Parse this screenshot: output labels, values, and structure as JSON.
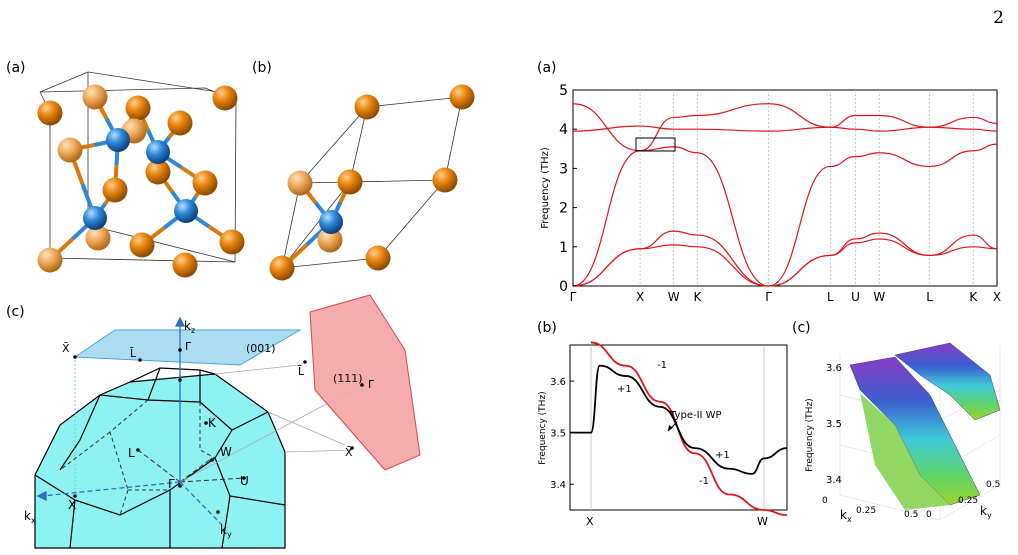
{
  "page_number": "2",
  "panels": {
    "left_a": "(a)",
    "left_b": "(b)",
    "left_c": "(c)",
    "right_a": "(a)",
    "right_b": "(b)",
    "right_c": "(c)"
  },
  "brillouin_zone": {
    "axis_kz": "k",
    "axis_kz_sub": "z",
    "axis_kx": "k",
    "axis_kx_sub": "x",
    "axis_ky": "k",
    "axis_ky_sub": "y",
    "plane_001": "(001)",
    "plane_111": "(111)",
    "points": {
      "Gamma": "Γ",
      "X": "X",
      "L": "L",
      "W": "W",
      "K": "K",
      "U": "U",
      "Gamma_bar_001": "Γ̄",
      "L_bar_001": "L̄",
      "X_bar_001": "X̄",
      "L_bar_111": "L̄",
      "Gamma_bar_111": "Γ̄",
      "X_bar_111": "X̄"
    }
  },
  "colors": {
    "atom_orange": "#d9780c",
    "atom_blue": "#2e86d4",
    "bz_face": "#8ef2f2",
    "plane_001": "#9dd6f0",
    "plane_111": "#f4a3a3",
    "band_red": "#e0141c"
  },
  "chart_data": [
    {
      "type": "line",
      "title": "",
      "ylabel": "Frequency (THz)",
      "xlabel": "",
      "ylim": [
        0,
        5
      ],
      "yticks": [
        "0",
        "1",
        "2",
        "3",
        "4",
        "5"
      ],
      "high_symmetry_points": [
        "Γ",
        "X",
        "W",
        "K",
        "Γ",
        "L",
        "U",
        "W",
        "L",
        "K",
        "X"
      ],
      "k_positions": [
        0,
        1,
        1.5,
        1.854,
        2.916,
        3.836,
        4.211,
        4.565,
        5.316,
        5.966,
        6.32
      ],
      "series": [
        {
          "values": [
            0,
            3.45,
            3.55,
            3.4,
            0,
            3.05,
            3.3,
            3.4,
            3.05,
            3.45,
            3.62
          ]
        },
        {
          "values": [
            4.65,
            3.45,
            4.3,
            4.35,
            4.65,
            4.05,
            4.35,
            4.35,
            4.05,
            4.3,
            4.15
          ]
        },
        {
          "values": [
            0,
            0.95,
            1.4,
            1.3,
            0,
            0.78,
            1.2,
            1.35,
            0.78,
            1.3,
            0.95
          ]
        },
        {
          "values": [
            0,
            0.95,
            1.05,
            1.0,
            0,
            0.78,
            1.1,
            1.2,
            0.78,
            1.0,
            0.95
          ]
        },
        {
          "values": [
            3.95,
            4.08,
            4.0,
            4.0,
            3.95,
            4.05,
            4.0,
            3.95,
            4.05,
            4.0,
            3.95
          ]
        }
      ]
    },
    {
      "type": "line",
      "ylabel": "Frequency (THz)",
      "ylim": [
        3.35,
        3.67
      ],
      "yticks": [
        "3.4",
        "3.5",
        "3.6"
      ],
      "xticks": [
        "X",
        "W"
      ],
      "annotation": "Type-II WP",
      "branch_labels": [
        "-1",
        "+1",
        "+1",
        "-1"
      ],
      "series": [
        {
          "name": "red",
          "x": [
            0,
            0.2,
            0.4,
            0.6,
            0.8,
            1.0
          ],
          "values": [
            3.675,
            3.63,
            3.56,
            3.46,
            3.38,
            3.35
          ]
        },
        {
          "name": "black",
          "x": [
            0,
            0.05,
            0.2,
            0.4,
            0.6,
            0.8,
            0.93,
            1.0
          ],
          "values": [
            3.5,
            3.63,
            3.61,
            3.55,
            3.47,
            3.43,
            3.42,
            3.45
          ]
        }
      ]
    },
    {
      "type": "surface",
      "ylabel": "Frequency (THz)",
      "zticks": [
        "3.4",
        "3.5",
        "3.6"
      ],
      "xlabel": "k",
      "xlabel_sub": "x",
      "ylabel2": "k",
      "ylabel2_sub": "y",
      "kx_ticks": [
        "0",
        "0.25",
        "0.5"
      ],
      "ky_ticks": [
        "0",
        "0.25",
        "0.5"
      ]
    }
  ]
}
